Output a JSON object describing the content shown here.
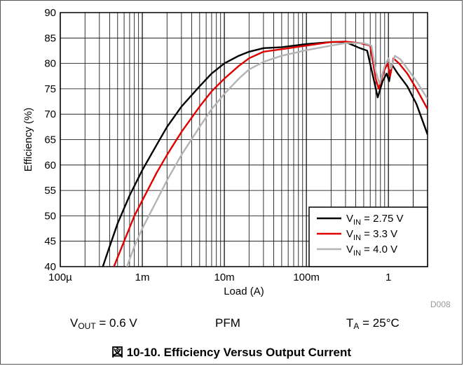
{
  "chart_data": {
    "type": "line",
    "title": "",
    "xlabel": "Load (A)",
    "ylabel": "Efficiency (%)",
    "xscale": "log",
    "xlim": [
      0.0001,
      3
    ],
    "ylim": [
      40,
      90
    ],
    "x_ticks": [
      {
        "value": 0.0001,
        "label": "100µ"
      },
      {
        "value": 0.001,
        "label": "1m"
      },
      {
        "value": 0.01,
        "label": "10m"
      },
      {
        "value": 0.1,
        "label": "100m"
      },
      {
        "value": 1,
        "label": "1"
      }
    ],
    "y_ticks": [
      40,
      45,
      50,
      55,
      60,
      65,
      70,
      75,
      80,
      85,
      90
    ],
    "grid": true,
    "legend_position": "bottom-right",
    "series": [
      {
        "name_main": "V",
        "name_sub": "IN",
        "name_rest": " = 2.75 V",
        "color": "#000000",
        "points": [
          [
            0.00033,
            40
          ],
          [
            0.0004,
            44
          ],
          [
            0.0005,
            48.5
          ],
          [
            0.0007,
            54
          ],
          [
            0.001,
            59
          ],
          [
            0.0015,
            64
          ],
          [
            0.002,
            67.5
          ],
          [
            0.003,
            71.5
          ],
          [
            0.005,
            75.5
          ],
          [
            0.007,
            78
          ],
          [
            0.01,
            80
          ],
          [
            0.015,
            81.5
          ],
          [
            0.02,
            82.3
          ],
          [
            0.03,
            83
          ],
          [
            0.05,
            83.2
          ],
          [
            0.1,
            83.8
          ],
          [
            0.2,
            84.2
          ],
          [
            0.3,
            84.2
          ],
          [
            0.45,
            83
          ],
          [
            0.55,
            82.5
          ],
          [
            0.68,
            76
          ],
          [
            0.74,
            73.3
          ],
          [
            0.85,
            76.5
          ],
          [
            0.95,
            78
          ],
          [
            1.02,
            76.5
          ],
          [
            1.1,
            79.8
          ],
          [
            1.3,
            78
          ],
          [
            1.7,
            75.5
          ],
          [
            2.2,
            72
          ],
          [
            3,
            66
          ]
        ]
      },
      {
        "name_main": "V",
        "name_sub": "IN",
        "name_rest": " = 3.3 V",
        "color": "#e00000",
        "points": [
          [
            0.00045,
            40
          ],
          [
            0.0006,
            45
          ],
          [
            0.0008,
            50
          ],
          [
            0.001,
            53
          ],
          [
            0.0015,
            58.5
          ],
          [
            0.002,
            62
          ],
          [
            0.003,
            66.5
          ],
          [
            0.005,
            71.5
          ],
          [
            0.007,
            74.5
          ],
          [
            0.01,
            77
          ],
          [
            0.015,
            79.5
          ],
          [
            0.02,
            81
          ],
          [
            0.03,
            82.3
          ],
          [
            0.05,
            82.8
          ],
          [
            0.1,
            83.5
          ],
          [
            0.2,
            84.2
          ],
          [
            0.3,
            84.3
          ],
          [
            0.45,
            84
          ],
          [
            0.6,
            83.5
          ],
          [
            0.7,
            77
          ],
          [
            0.76,
            75
          ],
          [
            0.88,
            78.5
          ],
          [
            0.98,
            80
          ],
          [
            1.05,
            77.5
          ],
          [
            1.15,
            81
          ],
          [
            1.35,
            80
          ],
          [
            1.7,
            78
          ],
          [
            2.2,
            75
          ],
          [
            3,
            71
          ]
        ]
      },
      {
        "name_main": "V",
        "name_sub": "IN",
        "name_rest": " = 4.0 V",
        "color": "#b4b4b4",
        "points": [
          [
            0.00065,
            40
          ],
          [
            0.0008,
            44
          ],
          [
            0.001,
            47.5
          ],
          [
            0.0015,
            53
          ],
          [
            0.002,
            57
          ],
          [
            0.003,
            62
          ],
          [
            0.005,
            67.5
          ],
          [
            0.007,
            71
          ],
          [
            0.01,
            74
          ],
          [
            0.015,
            77
          ],
          [
            0.02,
            78.8
          ],
          [
            0.03,
            80.3
          ],
          [
            0.05,
            81.5
          ],
          [
            0.1,
            82.6
          ],
          [
            0.2,
            83.5
          ],
          [
            0.3,
            84
          ],
          [
            0.5,
            84
          ],
          [
            0.62,
            83.5
          ],
          [
            0.7,
            78.5
          ],
          [
            0.78,
            76
          ],
          [
            0.9,
            79.5
          ],
          [
            1.0,
            81
          ],
          [
            1.07,
            79
          ],
          [
            1.2,
            81.5
          ],
          [
            1.4,
            80.8
          ],
          [
            1.7,
            79
          ],
          [
            2.2,
            76.5
          ],
          [
            3,
            73
          ]
        ]
      }
    ]
  },
  "conditions": {
    "vout_main": "V",
    "vout_sub": "OUT",
    "vout_rest": " = 0.6 V",
    "mode": "PFM",
    "ta_main": "T",
    "ta_sub": "A",
    "ta_rest": " = 25°C"
  },
  "figure_code": "D008",
  "caption": "図 10-10. Efficiency Versus Output Current"
}
